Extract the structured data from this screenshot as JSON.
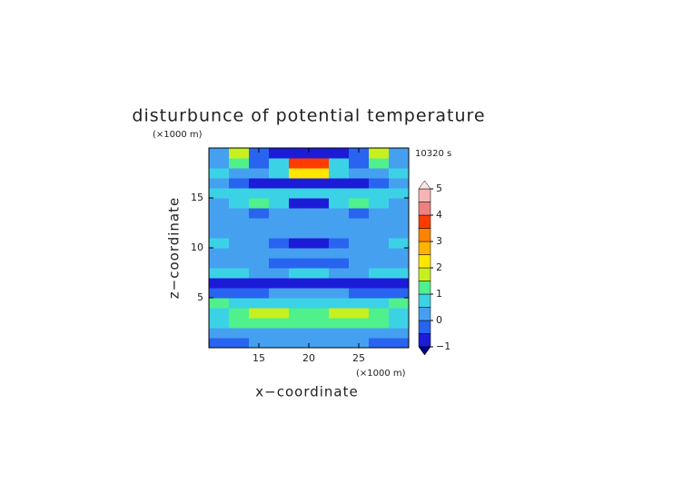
{
  "chart_data": {
    "type": "contour",
    "title": "disturbunce of potential temperature",
    "time_label": "10320 s",
    "x_label": "x−coordinate",
    "y_label": "z−coordinate",
    "x_unit": "(×1000 m)",
    "y_unit": "(×1000 m)",
    "xlim": [
      10,
      30
    ],
    "ylim": [
      0,
      20
    ],
    "xticks": [
      15,
      20,
      25
    ],
    "yticks": [
      5,
      10,
      15
    ],
    "x": [
      11,
      13,
      15,
      17,
      19,
      21,
      23,
      25,
      27,
      29
    ],
    "y": [
      0.5,
      1.5,
      2.5,
      3.5,
      4.5,
      5.5,
      6.5,
      7.5,
      8.5,
      9.5,
      10.5,
      11.5,
      12.5,
      13.5,
      14.5,
      15.5,
      16.5,
      17.5,
      18.5,
      19.5
    ],
    "z": [
      [
        -0.2,
        -0.1,
        0,
        0,
        0,
        0,
        0,
        0,
        -0.1,
        -0.2
      ],
      [
        0.2,
        0.3,
        0.4,
        0.3,
        0.3,
        0.3,
        0.3,
        0.4,
        0.3,
        0.2
      ],
      [
        0.8,
        1.2,
        1.4,
        1.3,
        1.1,
        1.1,
        1.3,
        1.4,
        1.2,
        0.8
      ],
      [
        0.9,
        1.4,
        1.9,
        1.6,
        1.2,
        1.2,
        1.6,
        1.9,
        1.4,
        0.9
      ],
      [
        1.2,
        0.8,
        0.6,
        0.5,
        0.6,
        0.6,
        0.5,
        0.6,
        0.8,
        1.2
      ],
      [
        -0.3,
        -0.2,
        -0.1,
        0,
        0,
        0,
        0,
        -0.1,
        -0.2,
        -0.3
      ],
      [
        -0.9,
        -0.9,
        -0.8,
        -0.7,
        -0.8,
        -0.8,
        -0.7,
        -0.8,
        -0.9,
        -0.9
      ],
      [
        0.8,
        0.6,
        0.4,
        0.4,
        0.7,
        0.7,
        0.4,
        0.4,
        0.6,
        0.8
      ],
      [
        0.3,
        0.2,
        0,
        -0.3,
        -0.2,
        -0.2,
        -0.3,
        0,
        0.2,
        0.3
      ],
      [
        0.4,
        0.2,
        0.1,
        0.2,
        0,
        0,
        0.2,
        0.1,
        0.2,
        0.4
      ],
      [
        0.6,
        0.2,
        0,
        -0.2,
        -0.7,
        -0.7,
        -0.2,
        0,
        0.2,
        0.6
      ],
      [
        0.2,
        0.1,
        0.2,
        0.1,
        0,
        0,
        0.1,
        0.2,
        0.1,
        0.2
      ],
      [
        0.3,
        0.2,
        0.4,
        0.3,
        0.2,
        0.2,
        0.3,
        0.4,
        0.2,
        0.3
      ],
      [
        0.2,
        0.1,
        -0.5,
        0,
        0.1,
        0.1,
        0,
        -0.5,
        0.1,
        0.2
      ],
      [
        0,
        0.8,
        1.2,
        0.6,
        -0.6,
        -0.6,
        0.6,
        1.2,
        0.8,
        0
      ],
      [
        0.9,
        0.8,
        0.6,
        0.7,
        0.6,
        0.6,
        0.7,
        0.6,
        0.8,
        0.9
      ],
      [
        0.2,
        -0.5,
        -0.7,
        -0.8,
        -0.8,
        -0.8,
        -0.8,
        -0.7,
        -0.5,
        0.2
      ],
      [
        0.5,
        0.3,
        0.4,
        0.8,
        2.0,
        2.0,
        0.8,
        0.4,
        0.3,
        0.5
      ],
      [
        0.4,
        1.0,
        -0.3,
        0.5,
        3.5,
        3.5,
        0.5,
        -0.3,
        1.0,
        0.4
      ],
      [
        0.2,
        1.8,
        -0.3,
        -0.7,
        -0.8,
        -0.8,
        -0.7,
        -0.3,
        1.8,
        0.2
      ]
    ],
    "levels": [
      -1,
      -0.5,
      0,
      0.5,
      1,
      1.5,
      2,
      2.5,
      3,
      3.5,
      4,
      4.5,
      5
    ],
    "colors": [
      "#1c1cd8",
      "#2864f0",
      "#46a0f0",
      "#3cd2e6",
      "#50f08c",
      "#c8f01e",
      "#ffe600",
      "#ffb400",
      "#ff8200",
      "#ff3c00",
      "#f08080",
      "#f8b4b4"
    ],
    "under_color": "#000080",
    "over_color": "#fbe6e6",
    "cticks": [
      {
        "value": -1,
        "label": "−1"
      },
      0,
      1,
      2,
      3,
      4,
      5
    ]
  }
}
